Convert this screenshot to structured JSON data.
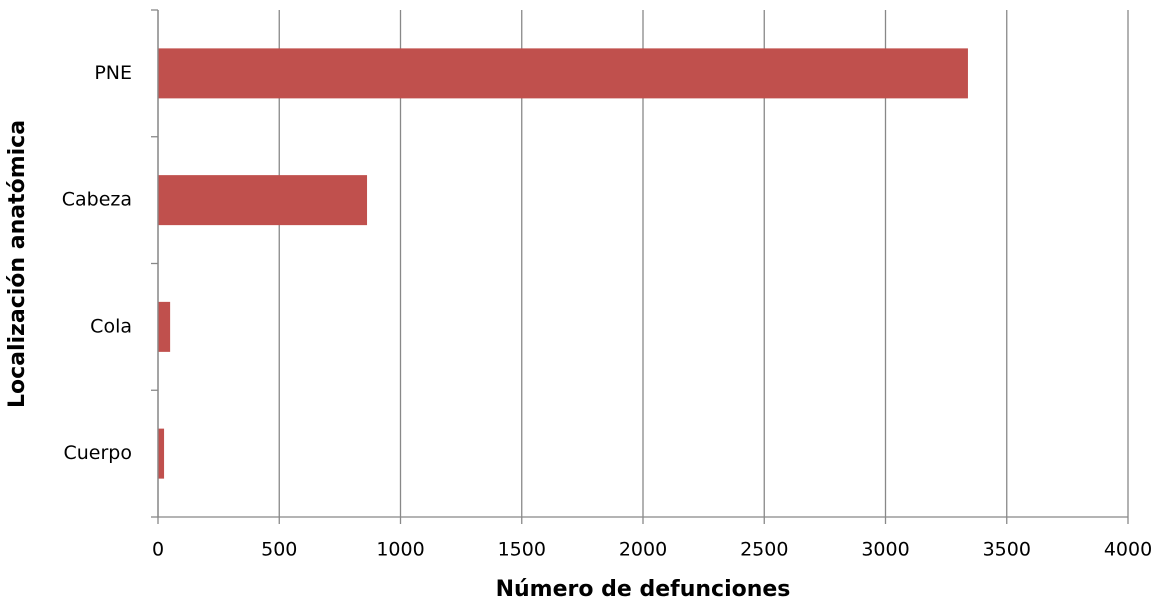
{
  "chart_data": {
    "type": "bar",
    "orientation": "horizontal",
    "categories": [
      "PNE",
      "Cabeza",
      "Cola",
      "Cuerpo"
    ],
    "values": [
      3340,
      862,
      50,
      25
    ],
    "color": "#c0504d",
    "xlabel": "Número de defunciones",
    "ylabel": "Localización anatómica",
    "xlim": [
      0,
      4000
    ],
    "xticks": [
      0,
      500,
      1000,
      1500,
      2000,
      2500,
      3000,
      3500,
      4000
    ],
    "grid": true
  }
}
